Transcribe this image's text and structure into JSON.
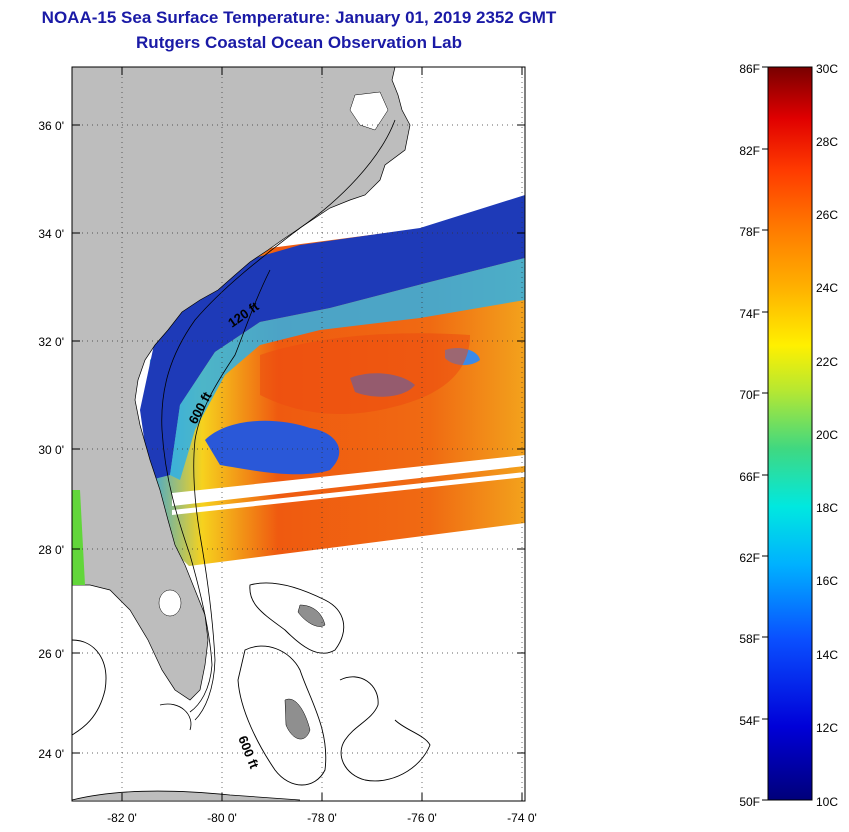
{
  "header": {
    "title": "NOAA-15 Sea Surface Temperature:  January 01, 2019 2352 GMT",
    "subtitle": "Rutgers Coastal Ocean Observation Lab"
  },
  "map": {
    "lat_labels": [
      "36 0'",
      "34 0'",
      "32 0'",
      "30 0'",
      "28 0'",
      "26 0'",
      "24 0'"
    ],
    "lon_labels": [
      "-82 0'",
      "-80 0'",
      "-78 0'",
      "-76 0'",
      "-74 0'"
    ],
    "contour_labels": [
      "120 ft",
      "600 ft",
      "600 ft"
    ]
  },
  "colorbar": {
    "fahrenheit_labels": [
      "86F",
      "82F",
      "78F",
      "74F",
      "70F",
      "66F",
      "62F",
      "58F",
      "54F",
      "50F"
    ],
    "celsius_labels": [
      "30C",
      "28C",
      "26C",
      "24C",
      "22C",
      "20C",
      "18C",
      "16C",
      "14C",
      "12C",
      "10C"
    ]
  },
  "colors": {
    "title": "#1a1aa6",
    "land": "#bdbdbd",
    "warm": "#ef5a10",
    "cold": "#1e3ab8"
  }
}
